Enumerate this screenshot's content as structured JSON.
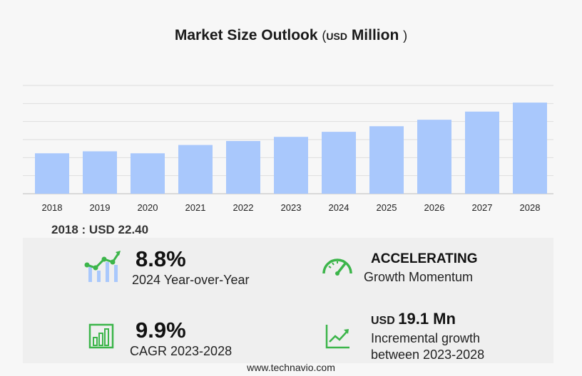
{
  "header": {
    "title": "Market Size Outlook",
    "unit_open": "(",
    "unit_small": "USD",
    "unit_word": "Million",
    "unit_close": ")"
  },
  "chart_data": {
    "type": "bar",
    "categories": [
      "2018",
      "2019",
      "2020",
      "2021",
      "2022",
      "2023",
      "2024",
      "2025",
      "2026",
      "2027",
      "2028"
    ],
    "values": [
      22.4,
      23.5,
      22.4,
      27.0,
      29.2,
      31.5,
      34.3,
      37.4,
      41.0,
      45.5,
      50.5
    ],
    "ylim": [
      0,
      60
    ],
    "grid": true,
    "bar_color": "#a9c8fc"
  },
  "base_value": "2018 : USD  22.40",
  "stats": {
    "yoy": {
      "value": "8.8%",
      "label": "2024 Year-over-Year",
      "icon": "growth-chart-icon"
    },
    "momentum": {
      "value": "ACCELERATING",
      "label": "Growth Momentum",
      "icon": "speedometer-icon"
    },
    "cagr": {
      "value": "9.9%",
      "label": "CAGR 2023-2028",
      "icon": "bar-chart-icon"
    },
    "incremental": {
      "prefix": "USD",
      "value": "19.1 Mn",
      "label1": "Incremental growth",
      "label2": "between 2023-2028",
      "icon": "trend-line-icon"
    }
  },
  "colors": {
    "accent_green": "#3cb54a",
    "bar_blue": "#a9c8fc"
  },
  "footer": "www.technavio.com"
}
